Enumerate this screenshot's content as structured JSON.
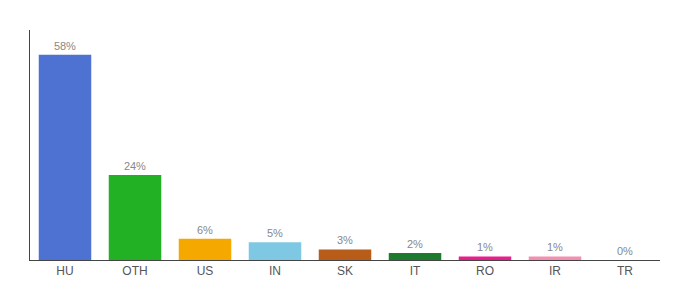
{
  "chart_data": {
    "type": "bar",
    "categories": [
      "HU",
      "OTH",
      "US",
      "IN",
      "SK",
      "IT",
      "RO",
      "IR",
      "TR"
    ],
    "values": [
      58,
      24,
      6,
      5,
      3,
      2,
      1,
      1,
      0
    ],
    "value_labels": [
      "58%",
      "24%",
      "6%",
      "5%",
      "3%",
      "2%",
      "1%",
      "1%",
      "0%"
    ],
    "colors": [
      "#4d72d1",
      "#22b024",
      "#f5a800",
      "#7ec8e3",
      "#b85c1a",
      "#1e7a2e",
      "#e91e8c",
      "#f48fb1",
      "#cccccc"
    ],
    "ylim": [
      0,
      65
    ],
    "data_labels": true,
    "tick_labels": "x",
    "grid": false
  }
}
